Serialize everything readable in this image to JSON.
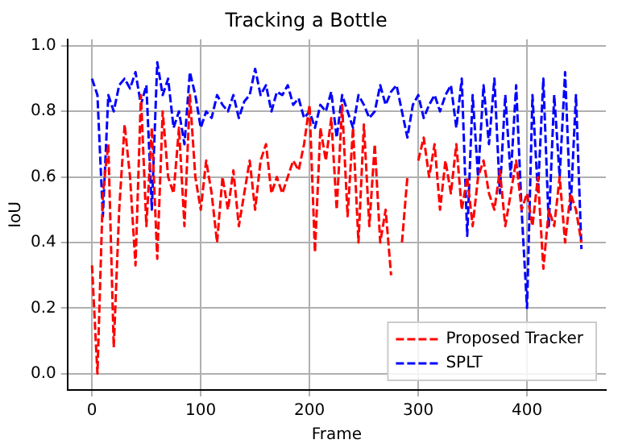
{
  "chart_data": {
    "type": "line",
    "title": "Tracking a Bottle",
    "xlabel": "Frame",
    "ylabel": "IoU",
    "x": [
      0,
      5,
      10,
      15,
      20,
      25,
      30,
      35,
      40,
      45,
      50,
      55,
      60,
      65,
      70,
      75,
      80,
      85,
      90,
      95,
      100,
      105,
      110,
      115,
      120,
      125,
      130,
      135,
      140,
      145,
      150,
      155,
      160,
      165,
      170,
      175,
      180,
      185,
      190,
      195,
      200,
      205,
      210,
      215,
      220,
      225,
      230,
      235,
      240,
      245,
      250,
      255,
      260,
      265,
      270,
      275,
      280,
      285,
      290,
      295,
      300,
      305,
      310,
      315,
      320,
      325,
      330,
      335,
      340,
      345,
      350,
      355,
      360,
      365,
      370,
      375,
      380,
      385,
      390,
      395,
      400,
      405,
      410,
      415,
      420,
      425,
      430,
      435,
      440,
      445,
      450
    ],
    "series": [
      {
        "name": "Proposed Tracker",
        "color": "#ff0000",
        "values": [
          0.33,
          0.0,
          0.55,
          0.7,
          0.08,
          0.5,
          0.76,
          0.6,
          0.33,
          0.85,
          0.45,
          0.75,
          0.35,
          0.8,
          0.6,
          0.55,
          0.75,
          0.45,
          0.85,
          0.6,
          0.5,
          0.65,
          0.55,
          0.4,
          0.6,
          0.5,
          0.62,
          0.45,
          0.55,
          0.65,
          0.5,
          0.65,
          0.7,
          0.55,
          0.6,
          0.55,
          0.6,
          0.65,
          0.62,
          0.7,
          0.82,
          0.37,
          0.75,
          0.65,
          0.78,
          0.5,
          0.82,
          0.48,
          0.75,
          0.4,
          0.76,
          0.45,
          0.7,
          0.4,
          0.5,
          0.3,
          null,
          0.4,
          0.6,
          null,
          0.65,
          0.72,
          0.6,
          0.7,
          0.5,
          0.65,
          0.55,
          0.7,
          0.5,
          0.6,
          0.45,
          0.6,
          0.65,
          0.55,
          0.5,
          0.62,
          0.45,
          0.55,
          0.65,
          0.5,
          0.55,
          0.45,
          0.6,
          0.32,
          0.5,
          0.45,
          0.6,
          0.4,
          0.55,
          0.5,
          0.4
        ]
      },
      {
        "name": "SPLT",
        "color": "#0000ff",
        "values": [
          0.9,
          0.85,
          0.48,
          0.85,
          0.8,
          0.88,
          0.9,
          0.87,
          0.92,
          0.82,
          0.88,
          0.5,
          0.95,
          0.85,
          0.9,
          0.75,
          0.8,
          0.7,
          0.92,
          0.85,
          0.75,
          0.8,
          0.78,
          0.85,
          0.82,
          0.8,
          0.85,
          0.78,
          0.83,
          0.85,
          0.93,
          0.85,
          0.88,
          0.8,
          0.86,
          0.85,
          0.88,
          0.82,
          0.84,
          0.78,
          0.8,
          0.75,
          0.82,
          0.8,
          0.86,
          0.72,
          0.85,
          0.8,
          0.75,
          0.85,
          0.82,
          0.78,
          0.8,
          0.88,
          0.82,
          0.86,
          0.88,
          0.8,
          0.72,
          0.82,
          0.85,
          0.78,
          0.82,
          0.85,
          0.8,
          0.85,
          0.88,
          0.75,
          0.9,
          0.42,
          0.85,
          0.6,
          0.88,
          0.7,
          0.9,
          0.55,
          0.85,
          0.6,
          0.88,
          0.5,
          0.2,
          0.85,
          0.55,
          0.9,
          0.45,
          0.85,
          0.6,
          0.92,
          0.5,
          0.85,
          0.38
        ]
      }
    ],
    "xlim": [
      -22.5,
      472.5
    ],
    "xticks": [
      0,
      100,
      200,
      300,
      400
    ],
    "ylim": [
      -0.05,
      1.02
    ],
    "yticks": [
      {
        "value": 0,
        "label": "0.0"
      },
      {
        "value": 0.2,
        "label": "0.2"
      },
      {
        "value": 0.4,
        "label": "0.4"
      },
      {
        "value": 0.6,
        "label": "0.6"
      },
      {
        "value": 0.8,
        "label": "0.8"
      },
      {
        "value": 1,
        "label": "1.0"
      }
    ],
    "grid": true,
    "legend": "bottom right",
    "marker": "none",
    "line_style": "dashed"
  }
}
